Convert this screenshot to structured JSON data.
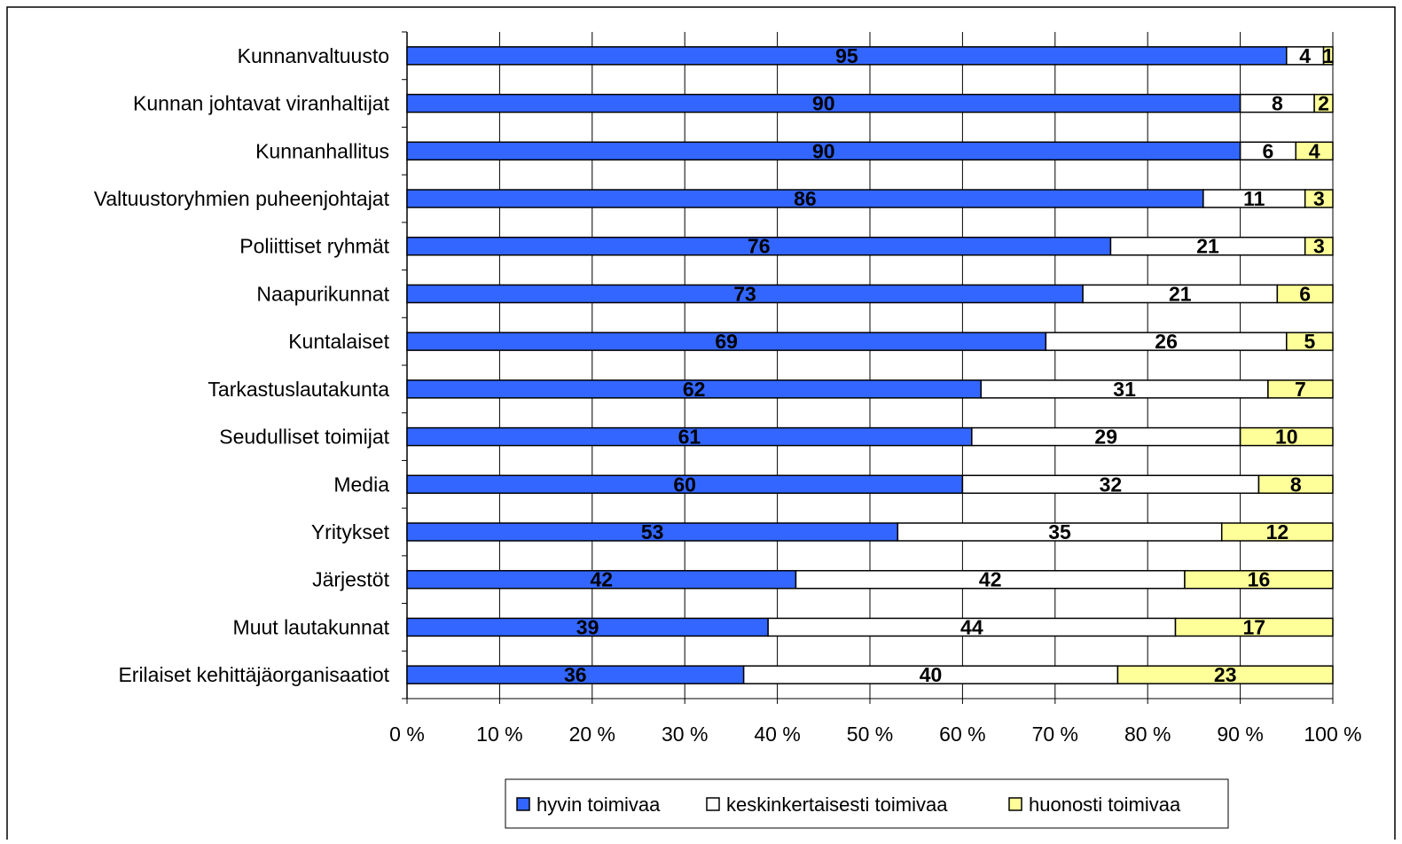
{
  "chart_data": {
    "type": "bar",
    "orientation": "horizontal",
    "stacked": "percent",
    "categories": [
      "Kunnanvaltuusto",
      "Kunnan johtavat viranhaltijat",
      "Kunnanhallitus",
      "Valtuustoryhmien puheenjohtajat",
      "Poliittiset ryhmät",
      "Naapurikunnat",
      "Kuntalaiset",
      "Tarkastuslautakunta",
      "Seudulliset toimijat",
      "Media",
      "Yritykset",
      "Järjestöt",
      "Muut lautakunnat",
      "Erilaiset kehittäjäorganisaatiot"
    ],
    "series": [
      {
        "name": "hyvin toimivaa",
        "color": "#3366ff",
        "values": [
          95,
          90,
          90,
          86,
          76,
          73,
          69,
          62,
          61,
          60,
          53,
          42,
          39,
          36
        ]
      },
      {
        "name": "keskinkertaisesti toimivaa",
        "color": "#ffffff",
        "values": [
          4,
          8,
          6,
          11,
          21,
          21,
          26,
          31,
          29,
          32,
          35,
          42,
          44,
          40
        ]
      },
      {
        "name": "huonosti toimivaa",
        "color": "#ffff99",
        "values": [
          1,
          2,
          4,
          3,
          3,
          6,
          5,
          7,
          10,
          8,
          12,
          16,
          17,
          23
        ]
      }
    ],
    "xlim": [
      0,
      100
    ],
    "xticks": [
      "0 %",
      "10 %",
      "20 %",
      "30 %",
      "40 %",
      "50 %",
      "60 %",
      "70 %",
      "80 %",
      "90 %",
      "100 %"
    ],
    "grid": true,
    "legend_position": "bottom",
    "title": "",
    "xlabel": "",
    "ylabel": ""
  }
}
